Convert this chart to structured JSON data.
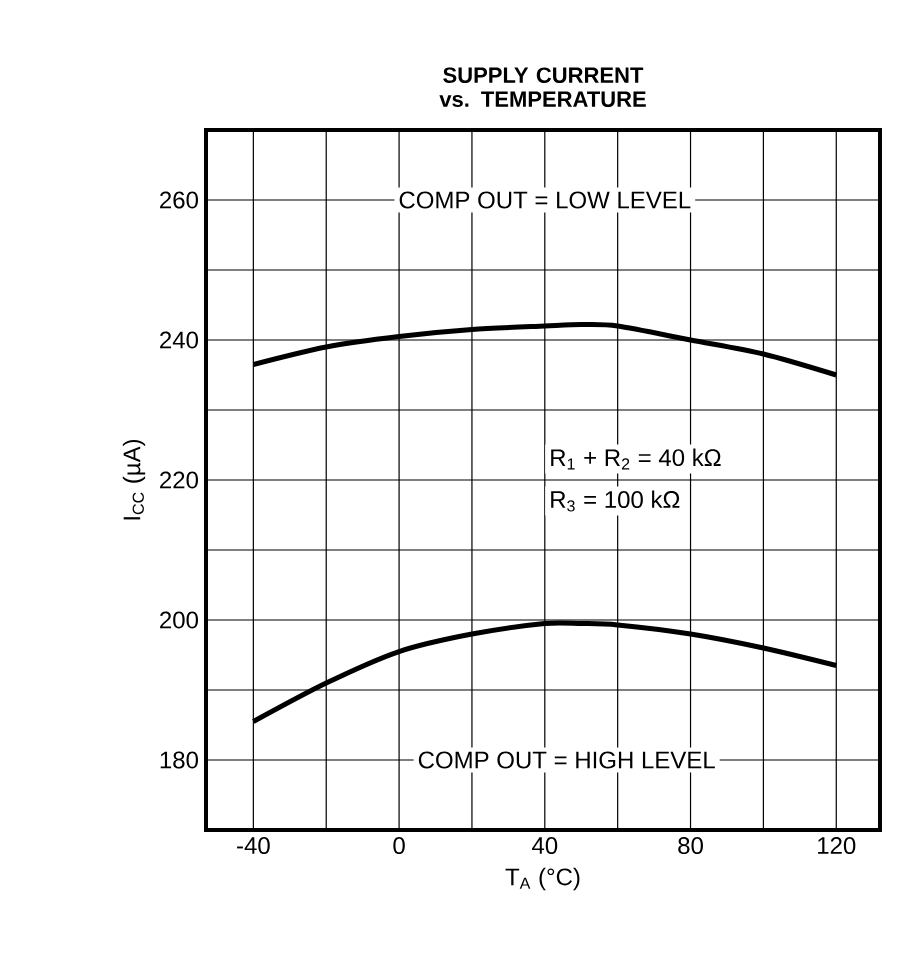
{
  "chart_data": {
    "type": "line",
    "title": "SUPPLY CURRENT vs. TEMPERATURE",
    "xlabel": "T$_{A}$ (°C)",
    "ylabel": "I$_{CC}$ (µA)",
    "x": [
      -40,
      -20,
      0,
      20,
      40,
      50,
      60,
      80,
      100,
      120
    ],
    "series": [
      {
        "color": "#000000",
        "values": [
          236.5,
          239,
          240.5,
          241.5,
          242,
          242.2,
          242,
          240,
          238,
          235
        ]
      },
      {
        "color": "#000000",
        "values": [
          185.5,
          191,
          195.5,
          198,
          199.5,
          199.5,
          199.3,
          198,
          196,
          193.5
        ]
      }
    ],
    "xlim": [
      -53,
      132
    ],
    "ylim": [
      170,
      270
    ],
    "xticks": [
      {
        "value": -40,
        "label": "-40"
      },
      {
        "value": -20,
        "label": null
      },
      0,
      {
        "value": 20,
        "label": null
      },
      40,
      {
        "value": 60,
        "label": null
      },
      80,
      {
        "value": 100,
        "label": null
      },
      120
    ],
    "yticks": [
      180,
      {
        "value": 190,
        "label": null
      },
      200,
      {
        "value": 210,
        "label": null
      },
      220,
      {
        "value": 230,
        "label": null
      },
      240,
      {
        "value": 250,
        "label": null
      },
      260
    ],
    "grid": true,
    "annotations": [
      "COMP OUT = LOW LEVEL",
      "R$_{1}$ + R$_{2}$ = 40 kΩ",
      "R$_{3}$ = 100 kΩ",
      "COMP OUT = HIGH LEVEL"
    ]
  }
}
